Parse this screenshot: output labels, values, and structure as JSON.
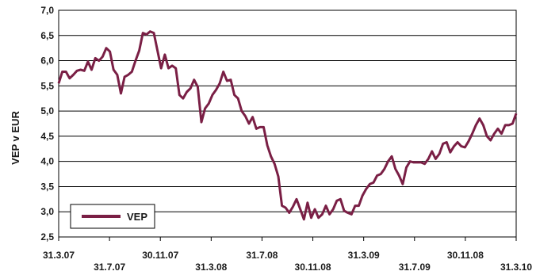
{
  "chart_data": {
    "type": "line",
    "ylabel": "VEP v EUR",
    "xlabel": "",
    "ylim": [
      2.5,
      7.0
    ],
    "yticks": [
      "2,5",
      "3,0",
      "3,5",
      "4,0",
      "4,5",
      "5,0",
      "5,5",
      "6,0",
      "6,5",
      "7,0"
    ],
    "xticks": [
      "31.3.07",
      "31.7.07",
      "30.11.07",
      "31.3.08",
      "31.7.08",
      "30.11.08",
      "31.3.09",
      "31.7.09",
      "30.11.08",
      "31.3.10"
    ],
    "grid": "horizontal",
    "legend": "bottom-left",
    "series": [
      {
        "name": "VEP",
        "color": "#7a1f45",
        "values": [
          5.55,
          5.78,
          5.78,
          5.65,
          5.72,
          5.8,
          5.82,
          5.8,
          5.98,
          5.82,
          6.05,
          6.0,
          6.08,
          6.25,
          6.18,
          5.82,
          5.72,
          5.35,
          5.68,
          5.72,
          5.78,
          6.0,
          6.2,
          6.55,
          6.52,
          6.58,
          6.55,
          6.2,
          5.85,
          6.12,
          5.85,
          5.9,
          5.85,
          5.32,
          5.25,
          5.38,
          5.45,
          5.62,
          5.48,
          4.78,
          5.05,
          5.15,
          5.32,
          5.42,
          5.55,
          5.78,
          5.6,
          5.62,
          5.32,
          5.25,
          5.0,
          4.9,
          4.75,
          4.88,
          4.65,
          4.68,
          4.68,
          4.32,
          4.1,
          3.95,
          3.7,
          3.12,
          3.08,
          2.98,
          3.1,
          3.25,
          3.05,
          2.85,
          3.18,
          2.88,
          3.05,
          2.88,
          2.95,
          3.12,
          2.95,
          3.05,
          3.22,
          3.25,
          3.02,
          2.98,
          2.95,
          3.12,
          3.12,
          3.32,
          3.45,
          3.55,
          3.58,
          3.72,
          3.75,
          3.85,
          4.0,
          4.1,
          3.85,
          3.72,
          3.55,
          3.88,
          4.0,
          3.98,
          3.98,
          3.98,
          3.95,
          4.05,
          4.2,
          4.05,
          4.15,
          4.35,
          4.38,
          4.18,
          4.3,
          4.38,
          4.3,
          4.28,
          4.4,
          4.55,
          4.72,
          4.85,
          4.72,
          4.5,
          4.42,
          4.55,
          4.65,
          4.55,
          4.72,
          4.72,
          4.75,
          4.95
        ]
      }
    ]
  }
}
